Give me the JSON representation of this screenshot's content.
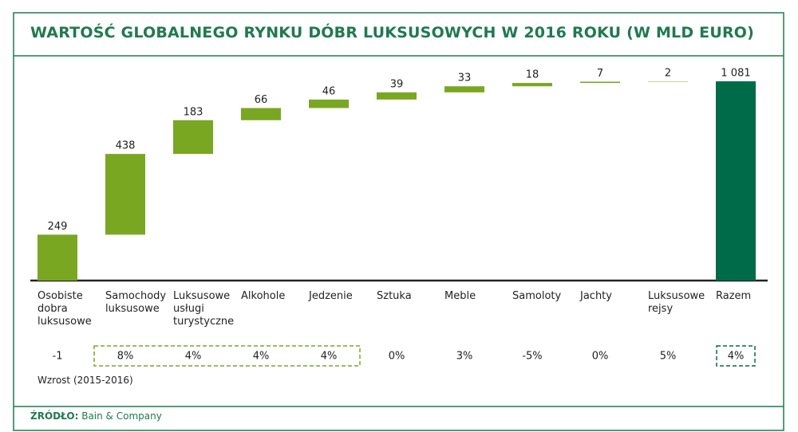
{
  "chart_data": {
    "type": "waterfall",
    "title": "WARTOŚĆ GLOBALNEGO RYNKU DÓBR LUKSUSOWYCH W 2016 ROKU (W MLD EURO)",
    "categories": [
      "Osobiste dobra luksusowe",
      "Samochody luksusowe",
      "Luksusowe usługi turystyczne",
      "Alkohole",
      "Jedzenie",
      "Sztuka",
      "Meble",
      "Samoloty",
      "Jachty",
      "Luksusowe rejsy",
      "Razem"
    ],
    "values": [
      249,
      438,
      183,
      66,
      46,
      39,
      33,
      18,
      7,
      2,
      1081
    ],
    "value_labels": [
      "249",
      "438",
      "183",
      "66",
      "46",
      "39",
      "33",
      "18",
      "7",
      "2",
      "1 081"
    ],
    "color": "#7aa722",
    "total_color": "#006b48",
    "growth": [
      "-1",
      "8%",
      "4%",
      "4%",
      "4%",
      "0%",
      "3%",
      "-5%",
      "0%",
      "5%",
      "4%"
    ],
    "growth_label": "Wzrost (2015-2016)",
    "source_label": "ŹRÓDŁO:",
    "source": "Bain & Company"
  }
}
